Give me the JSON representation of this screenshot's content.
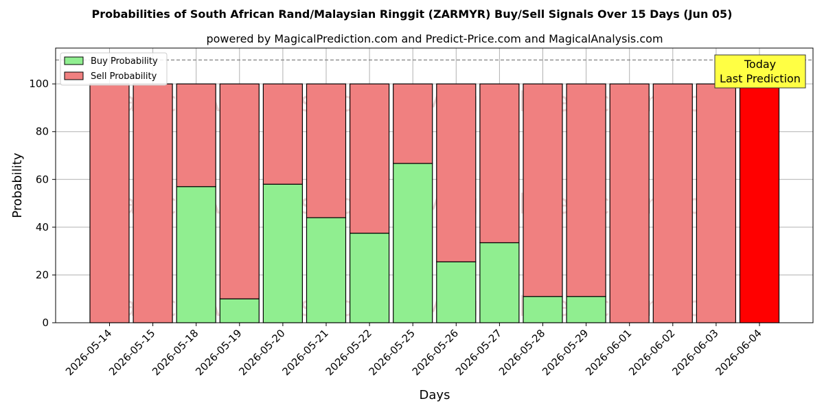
{
  "chart_data": {
    "type": "bar",
    "stacked": true,
    "title": "Probabilities of South African Rand/Malaysian Ringgit (ZARMYR) Buy/Sell Signals Over 15 Days (Jun 05)",
    "subtitle": "powered by MagicalPrediction.com and Predict-Price.com and MagicalAnalysis.com",
    "xlabel": "Days",
    "ylabel": "Probability",
    "ylim": [
      0,
      115
    ],
    "yticks": [
      0,
      20,
      40,
      60,
      80,
      100
    ],
    "grid": true,
    "legend_position": "top-left",
    "reference_line": 110,
    "categories": [
      "2026-05-14",
      "2026-05-15",
      "2026-05-18",
      "2026-05-19",
      "2026-05-20",
      "2026-05-21",
      "2026-05-22",
      "2026-05-25",
      "2026-05-26",
      "2026-05-27",
      "2026-05-28",
      "2026-05-29",
      "2026-06-01",
      "2026-06-02",
      "2026-06-03",
      "2026-06-04"
    ],
    "series": [
      {
        "name": "Buy Probability",
        "color": "#90ee90",
        "values": [
          0,
          0,
          57,
          10,
          58,
          44,
          37.5,
          66.7,
          25.5,
          33.5,
          11,
          11,
          0,
          0,
          0,
          0
        ]
      },
      {
        "name": "Sell Probability",
        "color": "#f08080",
        "values": [
          100,
          100,
          43,
          90,
          42,
          56,
          62.5,
          33.3,
          74.5,
          66.5,
          89,
          89,
          100,
          100,
          100,
          100
        ]
      }
    ],
    "highlight": {
      "index": 15,
      "color": "#ff0000"
    },
    "annotation": {
      "line1": "Today",
      "line2": "Last Prediction",
      "bg": "#ffff44"
    },
    "watermarks": [
      "MagicalAnalysis.com",
      "MagicalPrediction.com"
    ]
  }
}
